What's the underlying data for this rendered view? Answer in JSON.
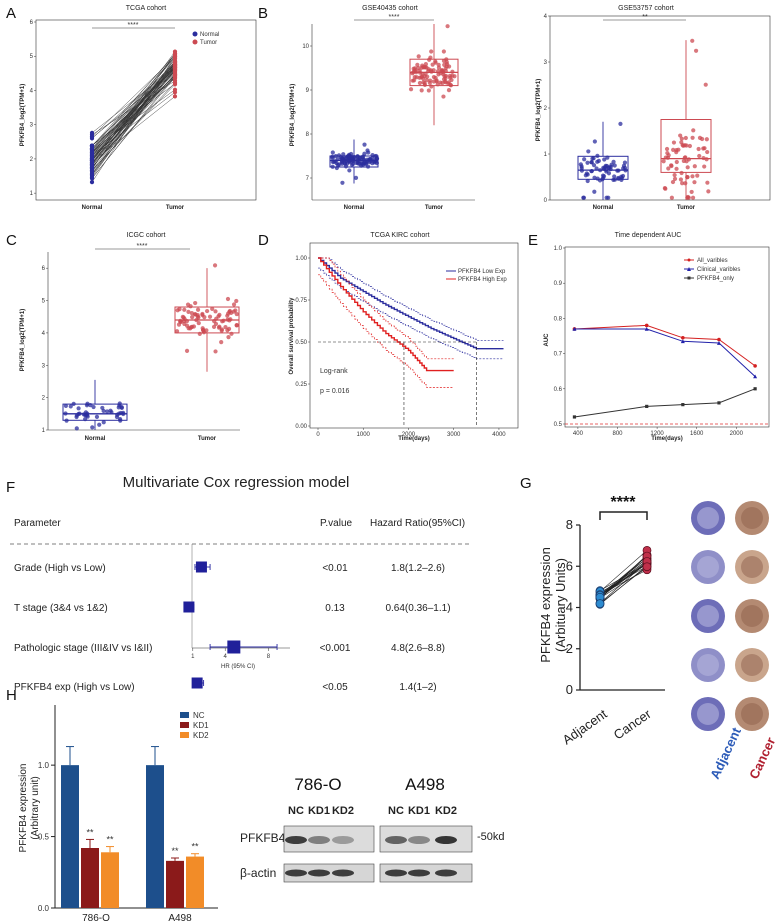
{
  "figure": {
    "panel_letters": [
      "A",
      "B",
      "C",
      "D",
      "E",
      "F",
      "G",
      "H"
    ],
    "colors": {
      "normal": "#2b2d9e",
      "tumor": "#cc4a52",
      "nc": "#1d4f8c",
      "kd1": "#8b1a1a",
      "kd2": "#f28c28"
    }
  },
  "panels": {
    "A": {
      "title": "TCGA cohort",
      "ylabel": "PFKFB4_log2(TPM+1)",
      "xcats": [
        "Normal",
        "Tumor"
      ],
      "sig": "****",
      "legend": [
        "Normal",
        "Tumor"
      ],
      "yticks": [
        "1",
        "2",
        "3",
        "4",
        "5",
        "6"
      ]
    },
    "B1": {
      "title": "GSE40435 cohort",
      "ylabel": "PFKFB4_log2(TPM+1)",
      "xcats": [
        "Normal",
        "Tumor"
      ],
      "sig": "****",
      "yticks": [
        "7",
        "8",
        "9",
        "10"
      ]
    },
    "B2": {
      "title": "GSE53757 cohort",
      "ylabel": "PFKFB4_log2(TPM+1)",
      "xcats": [
        "Normal",
        "Tumor"
      ],
      "sig": "**",
      "yticks": [
        "0",
        "1",
        "2",
        "3",
        "4"
      ]
    },
    "C": {
      "title": "ICGC cohort",
      "ylabel": "PFKFB4_log2(TPM+1)",
      "xcats": [
        "Normal",
        "Tumor"
      ],
      "sig": "****",
      "yticks": [
        "1",
        "2",
        "3",
        "4",
        "5",
        "6"
      ]
    },
    "D": {
      "title": "TCGA KIRC cohort",
      "ylabel": "Overall survival probability",
      "xlabel": "Time(days)",
      "legend": [
        "PFKFB4 Low Exp",
        "PFKFB4 High Exp"
      ],
      "logrank": "Log-rank",
      "pval": "p = 0.016",
      "xticks": [
        "0",
        "1000",
        "2000",
        "3000",
        "4000"
      ],
      "yticks": [
        "0.00",
        "0.25",
        "0.50",
        "0.75",
        "1.00"
      ]
    },
    "E": {
      "title": "Time dependent AUC",
      "ylabel": "AUC",
      "xlabel": "Time(days)",
      "legend": [
        "All_varibles",
        "Clinical_varibles",
        "PFKFB4_only"
      ],
      "xticks": [
        "400",
        "800",
        "1200",
        "1600",
        "2000"
      ],
      "yticks": [
        "0.5",
        "0.6",
        "0.7",
        "0.8",
        "0.9",
        "1.0"
      ]
    },
    "F": {
      "title": "Multivariate Cox regression model",
      "headers": {
        "param": "Parameter",
        "pval": "P.value",
        "hr": "Hazard Ratio(95%CI)"
      },
      "rows": [
        {
          "param": "Grade (High vs Low)",
          "pval": "<0.01",
          "hr": "1.8(1.2–2.6)"
        },
        {
          "param": "T stage (3&4 vs 1&2)",
          "pval": "0.13",
          "hr": "0.64(0.36–1.1)"
        },
        {
          "param": "Pathologic stage (III&IV vs I&II)",
          "pval": "<0.001",
          "hr": "4.8(2.6–8.8)"
        },
        {
          "param": "PFKFB4 exp (High vs Low)",
          "pval": "<0.05",
          "hr": "1.4(1–2)"
        }
      ],
      "xticks": [
        "1",
        "4",
        "8"
      ],
      "xlabel": "HR (95% CI)"
    },
    "G": {
      "ylabel": "PFKFB4 expression",
      "ylabel2": "(Arbituary Units)",
      "xcats": [
        "Adjacent",
        "Cancer"
      ],
      "sig": "****",
      "yticks": [
        "0",
        "2",
        "4",
        "6",
        "8"
      ],
      "ihc_labels": [
        "Adjacent",
        "Cancer"
      ]
    },
    "H": {
      "ylabel": "PFKFB4 expression",
      "ylabel2": "(Arbitrary unit)",
      "legend": [
        "NC",
        "KD1",
        "KD2"
      ],
      "groups": [
        "786-O",
        "A498"
      ],
      "yticks": [
        "0.0",
        "0.5",
        "1.0"
      ],
      "sig": "**",
      "wb": {
        "cell_lines": [
          "786-O",
          "A498"
        ],
        "lanes": [
          "NC",
          "KD1",
          "KD2",
          "NC",
          "KD1",
          "KD2"
        ],
        "rows": [
          "PFKFB4",
          "β-actin"
        ],
        "marker": "-50kd"
      }
    }
  },
  "chart_data": [
    {
      "type": "scatter",
      "panel": "A",
      "title": "TCGA cohort",
      "paired": true,
      "series": [
        {
          "name": "Normal",
          "median": 2.0
        },
        {
          "name": "Tumor",
          "median": 4.6
        }
      ],
      "ylim": [
        1,
        6
      ]
    },
    {
      "type": "scatter",
      "panel": "B1",
      "title": "GSE40435 cohort",
      "series": [
        {
          "name": "Normal",
          "q1": 7.25,
          "median": 7.4,
          "q3": 7.5
        },
        {
          "name": "Tumor",
          "q1": 9.1,
          "median": 9.4,
          "q3": 9.7
        }
      ],
      "ylim": [
        6.5,
        10.5
      ]
    },
    {
      "type": "scatter",
      "panel": "B2",
      "title": "GSE53757 cohort",
      "series": [
        {
          "name": "Normal",
          "q1": 0.45,
          "median": 0.65,
          "q3": 0.95
        },
        {
          "name": "Tumor",
          "q1": 0.6,
          "median": 0.9,
          "q3": 1.75
        }
      ],
      "ylim": [
        0,
        4
      ]
    },
    {
      "type": "scatter",
      "panel": "C",
      "title": "ICGC cohort",
      "series": [
        {
          "name": "Normal",
          "q1": 1.3,
          "median": 1.5,
          "q3": 1.8
        },
        {
          "name": "Tumor",
          "q1": 4.0,
          "median": 4.4,
          "q3": 4.8
        }
      ],
      "ylim": [
        1,
        6.5
      ]
    },
    {
      "type": "line",
      "panel": "D",
      "title": "TCGA KIRC cohort",
      "xlabel": "Time(days)",
      "ylabel": "Overall survival probability",
      "series": [
        {
          "name": "PFKFB4 Low Exp",
          "x": [
            0,
            500,
            1000,
            1500,
            2000,
            2500,
            3000,
            3500,
            4100
          ],
          "y": [
            1.0,
            0.88,
            0.8,
            0.72,
            0.65,
            0.58,
            0.52,
            0.46,
            0.46
          ]
        },
        {
          "name": "PFKFB4 High Exp",
          "x": [
            0,
            500,
            1000,
            1500,
            2000,
            2400,
            3000
          ],
          "y": [
            1.0,
            0.83,
            0.68,
            0.55,
            0.45,
            0.33,
            0.33
          ]
        }
      ],
      "xlim": [
        0,
        4200
      ],
      "ylim": [
        0,
        1
      ]
    },
    {
      "type": "line",
      "panel": "E",
      "title": "Time dependent AUC",
      "xlabel": "Time(days)",
      "ylabel": "AUC",
      "x": [
        365,
        1095,
        1460,
        1825,
        2190
      ],
      "series": [
        {
          "name": "All_varibles",
          "values": [
            0.77,
            0.78,
            0.745,
            0.74,
            0.665
          ]
        },
        {
          "name": "Clinical_varibles",
          "values": [
            0.77,
            0.77,
            0.735,
            0.73,
            0.635
          ]
        },
        {
          "name": "PFKFB4_only",
          "values": [
            0.52,
            0.55,
            0.555,
            0.56,
            0.6
          ]
        }
      ],
      "xlim": [
        300,
        2300
      ],
      "ylim": [
        0.5,
        1.0
      ]
    },
    {
      "type": "scatter",
      "panel": "F",
      "title": "Multivariate Cox regression model",
      "xlabel": "HR (95% CI)",
      "series": [
        {
          "name": "HR",
          "values": [
            1.8,
            0.64,
            4.8,
            1.4
          ],
          "lo": [
            1.2,
            0.36,
            2.6,
            1.0
          ],
          "hi": [
            2.6,
            1.1,
            8.8,
            2.0
          ]
        }
      ],
      "xlim": [
        0,
        9.5
      ]
    },
    {
      "type": "scatter",
      "panel": "G",
      "ylabel": "PFKFB4 expression (Arbituary Units)",
      "series": [
        {
          "name": "Adjacent",
          "mean": 4.5
        },
        {
          "name": "Cancer",
          "mean": 6.2
        }
      ],
      "ylim": [
        0,
        8
      ]
    },
    {
      "type": "bar",
      "panel": "H",
      "ylabel": "PFKFB4 expression (Arbitrary unit)",
      "categories": [
        "786-O",
        "A498"
      ],
      "series": [
        {
          "name": "NC",
          "values": [
            1.0,
            1.0
          ],
          "err": [
            0.13,
            0.13
          ]
        },
        {
          "name": "KD1",
          "values": [
            0.42,
            0.33
          ],
          "err": [
            0.06,
            0.02
          ]
        },
        {
          "name": "KD2",
          "values": [
            0.39,
            0.36
          ],
          "err": [
            0.04,
            0.02
          ]
        }
      ],
      "ylim": [
        0,
        1.4
      ]
    }
  ]
}
